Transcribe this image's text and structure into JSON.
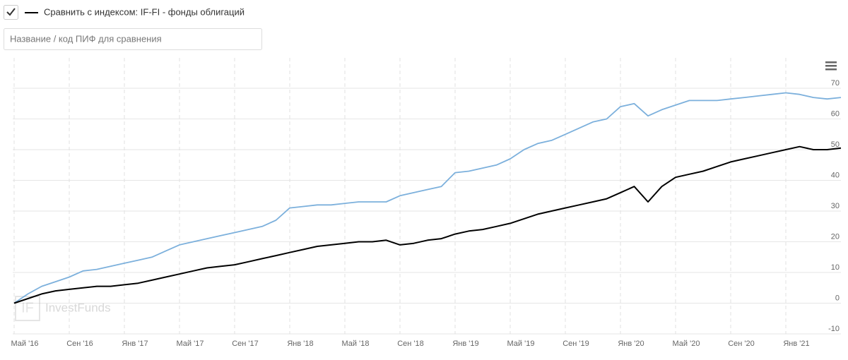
{
  "controls": {
    "compare_label": "Сравнить с индексом: IF-FI - фонды облигаций",
    "search_placeholder": "Название / код ПИФ для сравнения"
  },
  "watermark": "InvestFunds",
  "chart_data": {
    "type": "line",
    "x": [
      "2016-05",
      "2016-06",
      "2016-07",
      "2016-08",
      "2016-09",
      "2016-10",
      "2016-11",
      "2016-12",
      "2017-01",
      "2017-02",
      "2017-03",
      "2017-04",
      "2017-05",
      "2017-06",
      "2017-07",
      "2017-08",
      "2017-09",
      "2017-10",
      "2017-11",
      "2017-12",
      "2018-01",
      "2018-02",
      "2018-03",
      "2018-04",
      "2018-05",
      "2018-06",
      "2018-07",
      "2018-08",
      "2018-09",
      "2018-10",
      "2018-11",
      "2018-12",
      "2019-01",
      "2019-02",
      "2019-03",
      "2019-04",
      "2019-05",
      "2019-06",
      "2019-07",
      "2019-08",
      "2019-09",
      "2019-10",
      "2019-11",
      "2019-12",
      "2020-01",
      "2020-02",
      "2020-03",
      "2020-04",
      "2020-05",
      "2020-06",
      "2020-07",
      "2020-08",
      "2020-09",
      "2020-10",
      "2020-11",
      "2020-12",
      "2021-01",
      "2021-02",
      "2021-03",
      "2021-04",
      "2021-05"
    ],
    "series": [
      {
        "color": "#7cb0dc",
        "values": [
          0,
          3,
          5.5,
          7,
          8.5,
          10.5,
          11,
          12,
          13,
          14,
          15,
          17,
          19,
          20,
          21,
          22,
          23,
          24,
          25,
          27,
          31,
          31.5,
          32,
          32,
          32.5,
          33,
          33,
          33,
          35,
          36,
          37,
          38,
          42.5,
          43,
          44,
          45,
          47,
          50,
          52,
          53,
          55,
          57,
          59,
          60,
          64,
          65,
          61,
          63,
          64.5,
          66,
          66,
          66,
          66.5,
          67,
          67.5,
          68,
          68.5,
          68,
          67,
          66.5,
          67
        ]
      },
      {
        "color": "#000000",
        "values": [
          0,
          1.5,
          3,
          4,
          4.5,
          5,
          5.5,
          5.5,
          6,
          6.5,
          7.5,
          8.5,
          9.5,
          10.5,
          11.5,
          12,
          12.5,
          13.5,
          14.5,
          15.5,
          16.5,
          17.5,
          18.5,
          19,
          19.5,
          20,
          20,
          20.5,
          19,
          19.5,
          20.5,
          21,
          22.5,
          23.5,
          24,
          25,
          26,
          27.5,
          29,
          30,
          31,
          32,
          33,
          34,
          36,
          38,
          33,
          38,
          41,
          42,
          43,
          44.5,
          46,
          47,
          48,
          49,
          50,
          51,
          50,
          50,
          50.5
        ]
      }
    ],
    "xlim": [
      "2016-05",
      "2021-05"
    ],
    "xticks": [
      {
        "value": "2016-05",
        "label": "Май '16"
      },
      {
        "value": "2016-09",
        "label": "Сен '16"
      },
      {
        "value": "2017-01",
        "label": "Янв '17"
      },
      {
        "value": "2017-05",
        "label": "Май '17"
      },
      {
        "value": "2017-09",
        "label": "Сен '17"
      },
      {
        "value": "2018-01",
        "label": "Янв '18"
      },
      {
        "value": "2018-05",
        "label": "Май '18"
      },
      {
        "value": "2018-09",
        "label": "Сен '18"
      },
      {
        "value": "2019-01",
        "label": "Янв '19"
      },
      {
        "value": "2019-05",
        "label": "Май '19"
      },
      {
        "value": "2019-09",
        "label": "Сен '19"
      },
      {
        "value": "2020-01",
        "label": "Янв '20"
      },
      {
        "value": "2020-05",
        "label": "Май '20"
      },
      {
        "value": "2020-09",
        "label": "Сен '20"
      },
      {
        "value": "2021-01",
        "label": "Янв '21"
      }
    ],
    "ylim": [
      -10,
      70
    ],
    "yticks": [
      -10,
      0,
      10,
      20,
      30,
      40,
      50,
      60,
      70
    ],
    "grid": true
  }
}
